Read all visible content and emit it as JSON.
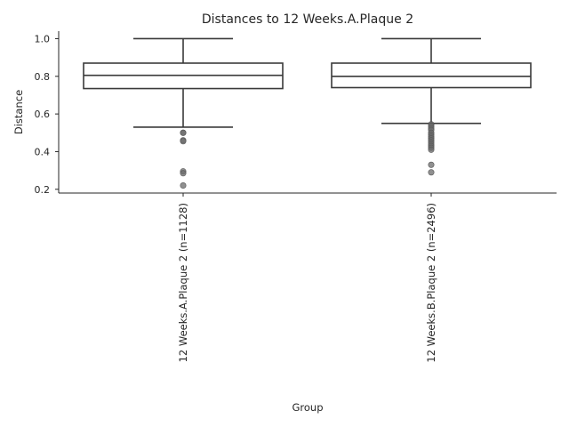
{
  "chart_data": {
    "type": "box",
    "title": "Distances to 12 Weeks.A.Plaque 2",
    "xlabel": "Group",
    "ylabel": "Distance",
    "ylim": [
      0.18,
      1.04
    ],
    "yticks": [
      "0.2",
      "0.4",
      "0.6",
      "0.8",
      "1.0"
    ],
    "ytick_values": [
      0.2,
      0.4,
      0.6,
      0.8,
      1.0
    ],
    "grid": false,
    "groups": [
      {
        "label": "12 Weeks.A.Plaque 2 (n=1128)",
        "whisker_low": 0.53,
        "q1": 0.735,
        "median": 0.805,
        "q3": 0.87,
        "whisker_high": 1.0,
        "outliers": [
          0.5,
          0.5,
          0.46,
          0.455,
          0.295,
          0.285,
          0.22
        ]
      },
      {
        "label": "12 Weeks.B.Plaque 2 (n=2496)",
        "whisker_low": 0.55,
        "q1": 0.74,
        "median": 0.8,
        "q3": 0.87,
        "whisker_high": 1.0,
        "outliers": [
          0.545,
          0.535,
          0.525,
          0.515,
          0.5,
          0.49,
          0.48,
          0.47,
          0.46,
          0.45,
          0.44,
          0.43,
          0.42,
          0.41,
          0.33,
          0.29
        ]
      }
    ]
  }
}
